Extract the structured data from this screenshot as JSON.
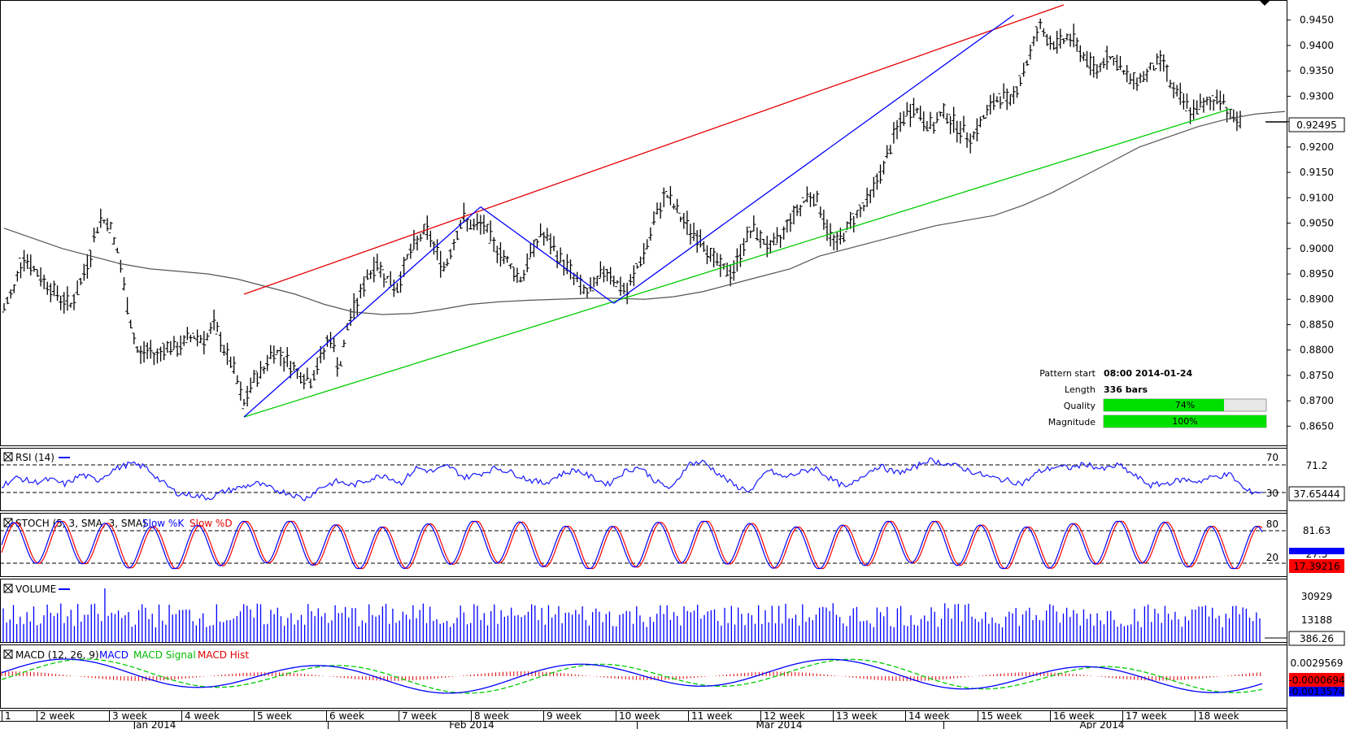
{
  "colors": {
    "price": "#000000",
    "sma": "#555555",
    "resistance": "#e60000",
    "support": "#00cc00",
    "pattern": "#0000ff",
    "rsi": "#1a1aff",
    "stoch_k": "#0000ff",
    "stoch_d": "#ff0000",
    "volume": "#0000ff",
    "macd": "#0000ff",
    "macd_signal": "#00cc00",
    "macd_hist": "#dd0000",
    "bar_fill": "#00e000"
  },
  "chart_data": {
    "type": "bar",
    "price": {
      "yticks": [
        "0.9450",
        "0.9400",
        "0.9350",
        "0.9300",
        "0.9250",
        "0.9200",
        "0.9150",
        "0.9100",
        "0.9050",
        "0.9000",
        "0.8950",
        "0.8900",
        "0.8850",
        "0.8800",
        "0.8750",
        "0.8700",
        "0.8650"
      ],
      "ylim": [
        0.8625,
        0.948
      ],
      "current": "0.92495",
      "series": [
        0.888,
        0.892,
        0.899,
        0.896,
        0.894,
        0.892,
        0.89,
        0.889,
        0.893,
        0.899,
        0.906,
        0.905,
        0.898,
        0.887,
        0.879,
        0.88,
        0.879,
        0.881,
        0.88,
        0.882,
        0.883,
        0.882,
        0.885,
        0.88,
        0.876,
        0.869,
        0.874,
        0.876,
        0.88,
        0.879,
        0.877,
        0.875,
        0.874,
        0.878,
        0.883,
        0.876,
        0.886,
        0.89,
        0.895,
        0.897,
        0.894,
        0.892,
        0.898,
        0.901,
        0.904,
        0.9,
        0.896,
        0.902,
        0.906,
        0.904,
        0.905,
        0.901,
        0.899,
        0.896,
        0.894,
        0.899,
        0.903,
        0.901,
        0.898,
        0.896,
        0.893,
        0.891,
        0.894,
        0.896,
        0.893,
        0.891,
        0.896,
        0.9,
        0.906,
        0.911,
        0.908,
        0.905,
        0.903,
        0.901,
        0.898,
        0.896,
        0.895,
        0.9,
        0.904,
        0.902,
        0.9,
        0.902,
        0.906,
        0.908,
        0.911,
        0.909,
        0.903,
        0.901,
        0.904,
        0.907,
        0.909,
        0.913,
        0.917,
        0.923,
        0.926,
        0.928,
        0.925,
        0.924,
        0.927,
        0.925,
        0.923,
        0.922,
        0.925,
        0.928,
        0.93,
        0.929,
        0.933,
        0.938,
        0.944,
        0.941,
        0.94,
        0.942,
        0.94,
        0.937,
        0.935,
        0.938,
        0.937,
        0.934,
        0.933,
        0.934,
        0.936,
        0.937,
        0.931,
        0.929,
        0.927,
        0.928,
        0.929,
        0.93,
        0.926,
        0.92495
      ],
      "sma_200": [
        0.904,
        0.902,
        0.9,
        0.8985,
        0.897,
        0.896,
        0.8955,
        0.895,
        0.894,
        0.8925,
        0.891,
        0.889,
        0.8875,
        0.887,
        0.8872,
        0.888,
        0.889,
        0.8895,
        0.8898,
        0.89,
        0.8902,
        0.8902,
        0.89,
        0.8905,
        0.8915,
        0.893,
        0.8945,
        0.896,
        0.8985,
        0.9,
        0.9015,
        0.903,
        0.9045,
        0.9055,
        0.9065,
        0.9085,
        0.911,
        0.914,
        0.917,
        0.92,
        0.922,
        0.924,
        0.9255,
        0.9265,
        0.927
      ]
    },
    "pattern": {
      "start_label": "Pattern start",
      "start_value": "08:00 2014-01-24",
      "length_label": "Length",
      "length_value": "336 bars",
      "quality_label": "Quality",
      "quality_pct": 74,
      "quality_text": "74%",
      "magnitude_label": "Magnitude",
      "magnitude_pct": 100,
      "magnitude_text": "100%"
    },
    "rsi": {
      "label": "RSI (14)",
      "levels": [
        "70",
        "30"
      ],
      "axis_tick": "71.2",
      "current": "37.65444",
      "series": [
        44,
        52,
        47,
        50,
        45,
        55,
        49,
        60,
        66,
        63,
        48,
        36,
        34,
        31,
        38,
        42,
        46,
        40,
        36,
        30,
        42,
        48,
        44,
        50,
        55,
        46,
        62,
        58,
        64,
        52,
        56,
        62,
        57,
        50,
        46,
        55,
        60,
        52,
        45,
        58,
        63,
        48,
        40,
        66,
        68,
        55,
        43,
        38,
        60,
        52,
        57,
        62,
        50,
        41,
        55,
        64,
        57,
        60,
        70,
        67,
        63,
        57,
        52,
        49,
        46,
        58,
        63,
        62,
        66,
        60,
        65,
        54,
        44,
        46,
        50,
        48,
        53,
        55,
        38,
        37
      ]
    },
    "stoch": {
      "label": "STOCH (5, 3, SMA, 3, SMA)",
      "slow_k_label": "Slow %K",
      "slow_d_label": "Slow %D",
      "levels": [
        "80",
        "20"
      ],
      "axis_tick": "81.63",
      "axis_tick_2": "27.5",
      "current": "17.39216"
    },
    "volume": {
      "label": "VOLUME",
      "ticks": [
        "30929",
        "13188"
      ],
      "current": "386.26"
    },
    "macd": {
      "label": "MACD (12, 26, 9)",
      "macd_label": "MACD",
      "signal_label": "MACD Signal",
      "hist_label": "MACD Hist",
      "axis_tick": "0.0029569",
      "current_a": "-0.0000694",
      "current_b": "-0.0013574"
    },
    "x_weeks": [
      "1",
      "2 week",
      "3 week",
      "4 week",
      "5 week",
      "6 week",
      "7 week",
      "8 week",
      "9 week",
      "10 week",
      "11 week",
      "12 week",
      "13 week",
      "14 week",
      "15 week",
      "16 week",
      "17 week",
      "18 week"
    ],
    "x_months": [
      "Jan 2014",
      "Feb 2014",
      "Mar 2014",
      "Apr 2014"
    ]
  }
}
